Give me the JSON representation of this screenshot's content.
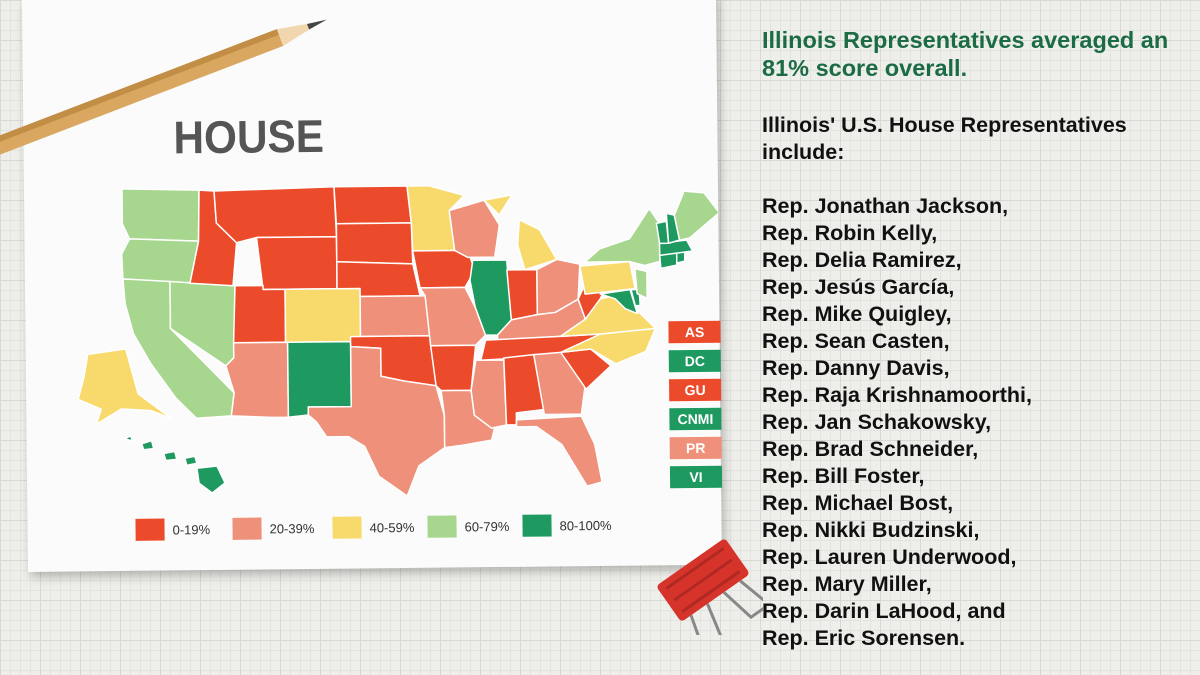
{
  "map": {
    "title": "HOUSE",
    "colors": {
      "c0": "#ec4b2b",
      "c1": "#ef907a",
      "c2": "#f7d96c",
      "c3": "#a7d68f",
      "c4": "#1e9a60"
    },
    "legend": [
      {
        "label": "0-19%",
        "color": "#ec4b2b"
      },
      {
        "label": "20-39%",
        "color": "#ef907a"
      },
      {
        "label": "40-59%",
        "color": "#f7d96c"
      },
      {
        "label": "60-79%",
        "color": "#a7d68f"
      },
      {
        "label": "80-100%",
        "color": "#1e9a60"
      }
    ],
    "territories": [
      {
        "label": "AS",
        "range": "0-19%"
      },
      {
        "label": "DC",
        "range": "80-100%"
      },
      {
        "label": "GU",
        "range": "0-19%"
      },
      {
        "label": "CNMI",
        "range": "80-100%"
      },
      {
        "label": "PR",
        "range": "20-39%"
      },
      {
        "label": "VI",
        "range": "80-100%"
      }
    ],
    "states": {
      "WA": "60-79%",
      "OR": "60-79%",
      "CA": "60-79%",
      "NV": "60-79%",
      "ID": "0-19%",
      "MT": "0-19%",
      "WY": "0-19%",
      "UT": "0-19%",
      "CO": "40-59%",
      "AZ": "20-39%",
      "NM": "80-100%",
      "ND": "0-19%",
      "SD": "0-19%",
      "NE": "0-19%",
      "KS": "20-39%",
      "OK": "0-19%",
      "TX": "20-39%",
      "MN": "40-59%",
      "IA": "0-19%",
      "MO": "20-39%",
      "AR": "0-19%",
      "LA": "20-39%",
      "WI": "20-39%",
      "IL": "80-100%",
      "MI": "40-59%",
      "IN": "0-19%",
      "OH": "20-39%",
      "KY": "20-39%",
      "TN": "0-19%",
      "MS": "20-39%",
      "AL": "0-19%",
      "GA": "20-39%",
      "FL": "20-39%",
      "SC": "0-19%",
      "NC": "40-59%",
      "VA": "40-59%",
      "WV": "0-19%",
      "PA": "40-59%",
      "NY": "60-79%",
      "MD": "80-100%",
      "DE": "80-100%",
      "NJ": "60-79%",
      "CT": "80-100%",
      "RI": "80-100%",
      "MA": "80-100%",
      "VT": "80-100%",
      "NH": "80-100%",
      "ME": "60-79%",
      "AK": "40-59%",
      "HI": "80-100%"
    }
  },
  "headline": "Illinois Representatives averaged an 81% score overall.",
  "subhead": "Illinois' U.S. House Representatives include:",
  "representatives": [
    "Rep. Jonathan Jackson,",
    "Rep. Robin Kelly,",
    "Rep. Delia Ramirez,",
    "Rep. Jesús García,",
    "Rep. Mike Quigley,",
    "Rep. Sean Casten,",
    "Rep. Danny Davis,",
    "Rep. Raja Krishnamoorthi,",
    "Rep. Jan Schakowsky,",
    "Rep. Brad Schneider,",
    "Rep. Bill Foster,",
    "Rep. Michael Bost,",
    "Rep. Nikki Budzinski,",
    "Rep. Lauren Underwood,",
    "Rep. Mary Miller,",
    "Rep. Darin LaHood, and",
    "Rep. Eric Sorensen."
  ],
  "decor": {
    "pencil_color": "#d9a760",
    "clip_color": "#d6332a"
  }
}
